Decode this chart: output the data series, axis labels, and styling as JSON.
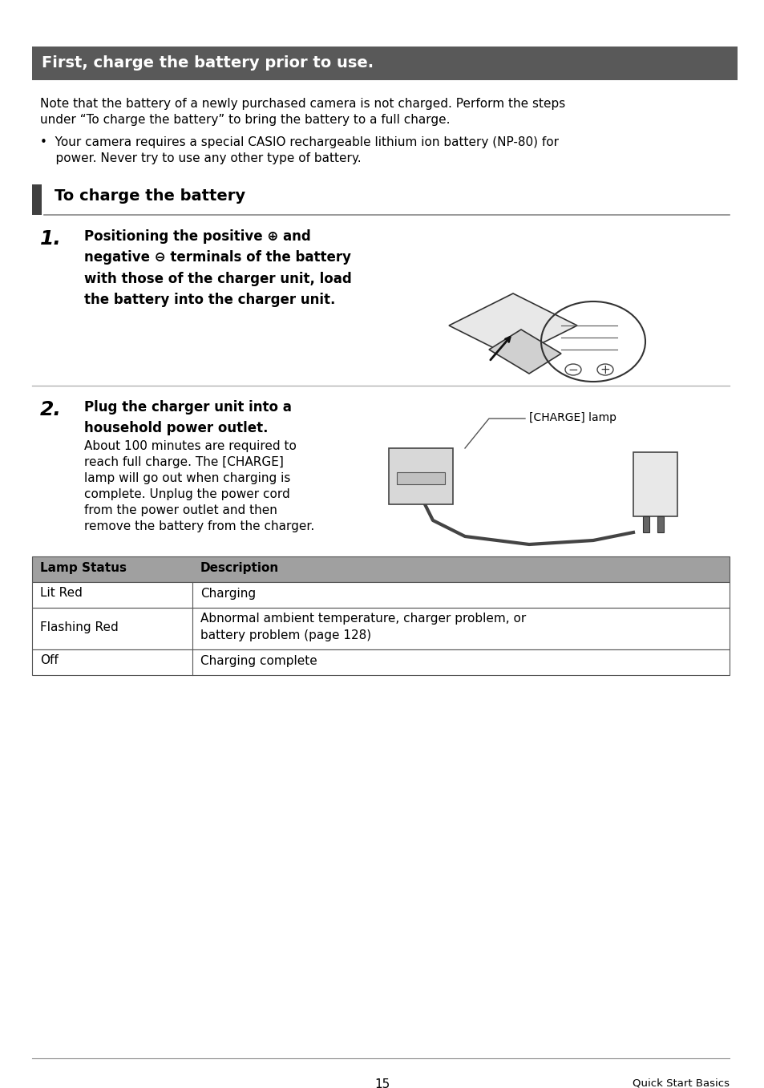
{
  "bg_color": "#ffffff",
  "header_bg": "#595959",
  "header_text": "First, charge the battery prior to use.",
  "header_text_color": "#ffffff",
  "header_fontsize": 14,
  "body_intro_line1": "Note that the battery of a newly purchased camera is not charged. Perform the steps",
  "body_intro_line2": "under “To charge the battery” to bring the battery to a full charge.",
  "bullet_line1": "•  Your camera requires a special CASIO rechargeable lithium ion battery (NP-80) for",
  "bullet_line2": "    power. Never try to use any other type of battery.",
  "section_title": "To charge the battery",
  "section_bar_color": "#404040",
  "section_line_color": "#888888",
  "step1_number": "1.",
  "step1_bold": "Positioning the positive ⊕ and\nnegative ⊖ terminals of the battery\nwith those of the charger unit, load\nthe battery into the charger unit.",
  "step2_number": "2.",
  "step2_bold": "Plug the charger unit into a\nhousehold power outlet.",
  "step2_normal_line1": "About 100 minutes are required to",
  "step2_normal_line2": "reach full charge. The [CHARGE]",
  "step2_normal_line3": "lamp will go out when charging is",
  "step2_normal_line4": "complete. Unplug the power cord",
  "step2_normal_line5": "from the power outlet and then",
  "step2_normal_line6": "remove the battery from the charger.",
  "charge_lamp_label": "[CHARGE] lamp",
  "table_header_bg": "#a0a0a0",
  "table_col1_header": "Lamp Status",
  "table_col2_header": "Description",
  "table_rows": [
    [
      "Lit Red",
      "Charging"
    ],
    [
      "Flashing Red",
      "Abnormal ambient temperature, charger problem, or\nbattery problem (page 128)"
    ],
    [
      "Off",
      "Charging complete"
    ]
  ],
  "footer_page": "15",
  "footer_right": "Quick Start Basics",
  "body_fontsize": 11,
  "step_bold_fontsize": 12,
  "step_number_fontsize": 18,
  "section_fontsize": 14
}
